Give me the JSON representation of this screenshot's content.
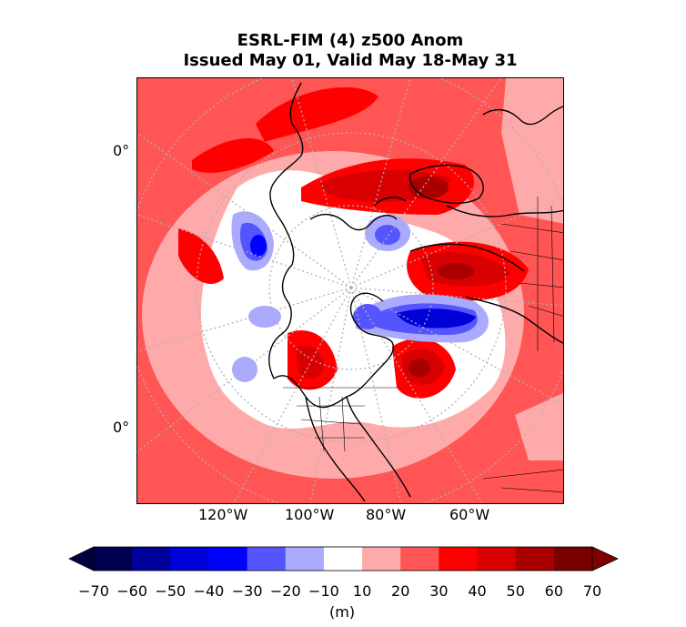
{
  "title": {
    "line1": "ESRL-FIM (4) z500 Anom",
    "line2": "Issued May 01, Valid May 18-May 31"
  },
  "map": {
    "lat_labels": [
      "0°",
      "0°"
    ],
    "lon_labels": [
      "120°W",
      "100°W",
      "80°W",
      "60°W"
    ]
  },
  "colorbar": {
    "levels": [
      -70,
      -60,
      -50,
      -40,
      -30,
      -20,
      -10,
      10,
      20,
      30,
      40,
      50,
      60,
      70
    ],
    "tick_labels": [
      "−70",
      "−60",
      "−50",
      "−40",
      "−30",
      "−20",
      "−10",
      "10",
      "20",
      "30",
      "40",
      "50",
      "60",
      "70"
    ],
    "colors": [
      "#000050",
      "#00009a",
      "#0000d8",
      "#0000ff",
      "#5555ff",
      "#aaaaff",
      "#ffffff",
      "#ffaaaa",
      "#ff5555",
      "#ff0000",
      "#d80000",
      "#a80000",
      "#7a0000"
    ],
    "extend_low_color": "#000040",
    "extend_high_color": "#800000",
    "unit": "(m)"
  }
}
